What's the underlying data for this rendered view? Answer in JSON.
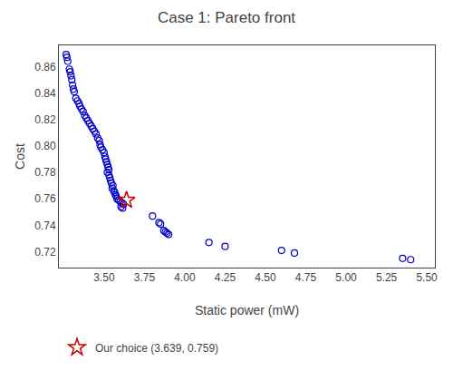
{
  "chart_data": {
    "type": "scatter",
    "title": "Case 1: Pareto front",
    "xlabel": "Static power (mW)",
    "ylabel": "Cost",
    "xlim": [
      3.22,
      5.55
    ],
    "ylim": [
      0.708,
      0.876
    ],
    "xticks": [
      {
        "value": 3.5,
        "label": "3.50"
      },
      3.75,
      {
        "value": 4.0,
        "label": "4.00"
      },
      4.25,
      {
        "value": 4.5,
        "label": "4.50"
      },
      4.75,
      {
        "value": 5.0,
        "label": "5.00"
      },
      5.25,
      {
        "value": 5.5,
        "label": "5.50"
      }
    ],
    "yticks": [
      0.72,
      0.74,
      0.76,
      0.78,
      {
        "value": 0.8,
        "label": "0.80"
      },
      0.82,
      0.84,
      0.86
    ],
    "grid": false,
    "legend": "bottom left",
    "series": [
      {
        "color": "#0000cc",
        "marker": "circle-open",
        "x": [
          3.265,
          3.27,
          3.275,
          3.285,
          3.29,
          3.295,
          3.3,
          3.305,
          3.31,
          3.315,
          3.325,
          3.335,
          3.345,
          3.35,
          3.36,
          3.37,
          3.38,
          3.39,
          3.4,
          3.41,
          3.42,
          3.43,
          3.44,
          3.45,
          3.46,
          3.47,
          3.475,
          3.48,
          3.49,
          3.5,
          3.505,
          3.51,
          3.515,
          3.52,
          3.525,
          3.53,
          3.52,
          3.53,
          3.535,
          3.54,
          3.545,
          3.555,
          3.55,
          3.56,
          3.565,
          3.57,
          3.575,
          3.58,
          3.59,
          3.6,
          3.61,
          3.62,
          3.605,
          3.615,
          3.8,
          3.84,
          3.85,
          3.87,
          3.88,
          3.89,
          3.9,
          4.15,
          4.25,
          4.6,
          4.68,
          5.35,
          5.4
        ],
        "values": [
          0.869,
          0.867,
          0.864,
          0.858,
          0.856,
          0.853,
          0.85,
          0.846,
          0.843,
          0.841,
          0.836,
          0.834,
          0.832,
          0.83,
          0.828,
          0.826,
          0.823,
          0.821,
          0.819,
          0.817,
          0.815,
          0.813,
          0.811,
          0.809,
          0.806,
          0.804,
          0.801,
          0.799,
          0.797,
          0.795,
          0.792,
          0.79,
          0.788,
          0.786,
          0.784,
          0.782,
          0.78,
          0.778,
          0.776,
          0.774,
          0.772,
          0.77,
          0.768,
          0.766,
          0.765,
          0.763,
          0.762,
          0.76,
          0.759,
          0.758,
          0.757,
          0.756,
          0.754,
          0.753,
          0.747,
          0.742,
          0.741,
          0.736,
          0.735,
          0.734,
          0.733,
          0.727,
          0.724,
          0.721,
          0.719,
          0.715,
          0.714
        ]
      },
      {
        "name": "Our choice (3.639, 0.759)",
        "color": "#cc0000",
        "marker": "star-open",
        "x": [
          3.639
        ],
        "values": [
          0.759
        ]
      }
    ]
  }
}
